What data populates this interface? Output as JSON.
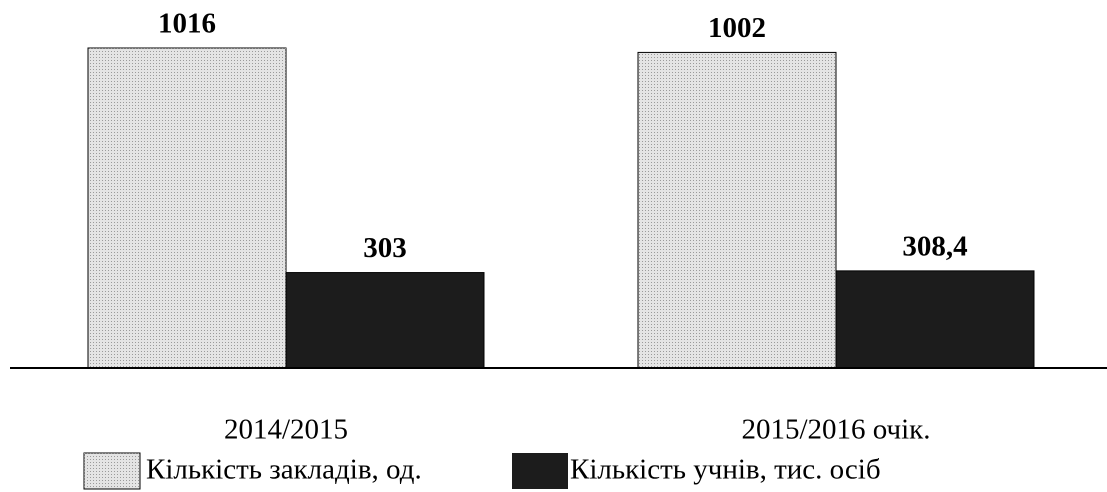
{
  "chart_data": {
    "type": "bar",
    "categories": [
      "2014/2015",
      "2015/2016 очік."
    ],
    "series": [
      {
        "name": "Кількість закладів, од.",
        "color": "#e4e4e4",
        "values": [
          1016,
          1002
        ]
      },
      {
        "name": "Кількість учнів, тис. осіб",
        "color": "#1c1c1c",
        "values": [
          303,
          308.4
        ],
        "value_labels": [
          "303",
          "308,4"
        ]
      }
    ]
  }
}
